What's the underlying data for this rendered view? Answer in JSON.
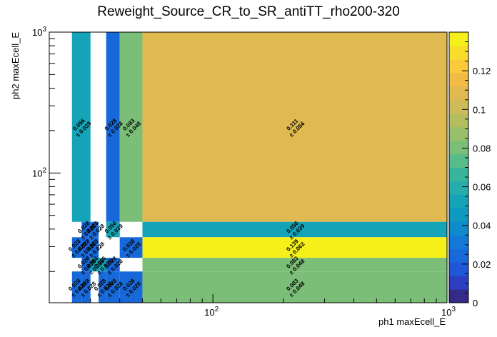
{
  "chart_data": {
    "type": "heatmap",
    "title": "Reweight_Source_CR_to_SR_antiTT_rho200-320",
    "xlabel": "ph1 maxEcell_E",
    "ylabel": "ph2 maxEcell_E",
    "x_scale": "log",
    "y_scale": "log",
    "xlim": [
      20,
      1000
    ],
    "ylim": [
      12,
      1000
    ],
    "x_tick_labels": [
      "10^2",
      "10^3"
    ],
    "y_tick_labels": [
      "10^2",
      "10^3"
    ],
    "colorbar": {
      "range": [
        0,
        0.14
      ],
      "tick_labels": [
        "0",
        "0.02",
        "0.04",
        "0.06",
        "0.08",
        "0.1",
        "0.12"
      ],
      "ticks": [
        0,
        0.02,
        0.04,
        0.06,
        0.08,
        0.1,
        0.12
      ],
      "colors": [
        "#352a87",
        "#2b3fc0",
        "#1f57d8",
        "#1769da",
        "#1479d6",
        "#0f8acb",
        "#0d99c0",
        "#15a4b7",
        "#26adab",
        "#3ab59c",
        "#58bb8a",
        "#7bbe78",
        "#9abf6a",
        "#b6bd5f",
        "#cdbb57",
        "#e0b951",
        "#f1bb45",
        "#fbc93a",
        "#f8de2a",
        "#f5f019"
      ]
    },
    "cells": [
      {
        "x": [
          25,
          30
        ],
        "y": [
          45,
          1000
        ],
        "value": 0.056,
        "label": "0.056",
        "error": "± 0.039"
      },
      {
        "x": [
          35,
          40
        ],
        "y": [
          45,
          1000
        ],
        "value": 0.028,
        "label": "0.028",
        "error": "± 0.028"
      },
      {
        "x": [
          40,
          50
        ],
        "y": [
          45,
          1000
        ],
        "value": 0.083,
        "label": "0.083",
        "error": "± 0.048"
      },
      {
        "x": [
          50,
          1000
        ],
        "y": [
          45,
          1000
        ],
        "value": 0.111,
        "label": "0.111",
        "error": "± 0.056"
      },
      {
        "x": [
          27.5,
          30
        ],
        "y": [
          35,
          45
        ],
        "value": 0.028,
        "label": "0.028",
        "error": "± 0.028"
      },
      {
        "x": [
          30,
          32.5
        ],
        "y": [
          35,
          45
        ],
        "value": 0.028,
        "label": "0.028",
        "error": "± 0.028"
      },
      {
        "x": [
          35,
          40
        ],
        "y": [
          35,
          45
        ],
        "value": 0.056,
        "label": "0.056",
        "error": "± 0.039"
      },
      {
        "x": [
          50,
          1000
        ],
        "y": [
          35,
          45
        ],
        "value": 0.056,
        "label": "0.056",
        "error": "± 0.039"
      },
      {
        "x": [
          25,
          27.5
        ],
        "y": [
          25,
          35
        ],
        "value": 0.028,
        "label": "0.028",
        "error": "± 0.028"
      },
      {
        "x": [
          27.5,
          30
        ],
        "y": [
          25,
          35
        ],
        "value": 0.028,
        "label": "0.028",
        "error": "± 0.028"
      },
      {
        "x": [
          30,
          32.5
        ],
        "y": [
          25,
          35
        ],
        "value": 0.028,
        "label": "0.028",
        "error": "± 0.028"
      },
      {
        "x": [
          40,
          50
        ],
        "y": [
          25,
          35
        ],
        "value": 0.028,
        "label": "0.028",
        "error": "± 0.028"
      },
      {
        "x": [
          50,
          1000
        ],
        "y": [
          25,
          35
        ],
        "value": 0.139,
        "label": "0.139",
        "error": "± 0.062"
      },
      {
        "x": [
          27.5,
          30
        ],
        "y": [
          20,
          25
        ],
        "value": 0.028,
        "label": "0.028",
        "error": "± 0.028"
      },
      {
        "x": [
          30,
          32.5
        ],
        "y": [
          20,
          25
        ],
        "value": 0.056,
        "label": "0.056",
        "error": "± 0.039"
      },
      {
        "x": [
          32.5,
          35
        ],
        "y": [
          20,
          25
        ],
        "value": 0.056,
        "label": "0.056",
        "error": "± 0.039"
      },
      {
        "x": [
          35,
          40
        ],
        "y": [
          20,
          25
        ],
        "value": 0.028,
        "label": "0.028",
        "error": "± 0.028"
      },
      {
        "x": [
          50,
          1000
        ],
        "y": [
          20,
          25
        ],
        "value": 0.083,
        "label": "0.083",
        "error": "± 0.048"
      },
      {
        "x": [
          25,
          27.5
        ],
        "y": [
          12,
          20
        ],
        "value": 0.028,
        "label": "0.028",
        "error": "± 0.028"
      },
      {
        "x": [
          27.5,
          30
        ],
        "y": [
          12,
          20
        ],
        "value": 0.028,
        "label": "0.028",
        "error": "± 0.028"
      },
      {
        "x": [
          32.5,
          35
        ],
        "y": [
          12,
          20
        ],
        "value": 0.028,
        "label": "0.028",
        "error": "± 0.028"
      },
      {
        "x": [
          35,
          40
        ],
        "y": [
          12,
          20
        ],
        "value": 0.028,
        "label": "0.028",
        "error": "± 0.028"
      },
      {
        "x": [
          40,
          50
        ],
        "y": [
          12,
          20
        ],
        "value": 0.028,
        "label": "0.028",
        "error": "± 0.028"
      },
      {
        "x": [
          50,
          1000
        ],
        "y": [
          12,
          20
        ],
        "value": 0.083,
        "label": "0.083",
        "error": "± 0.048"
      }
    ]
  }
}
